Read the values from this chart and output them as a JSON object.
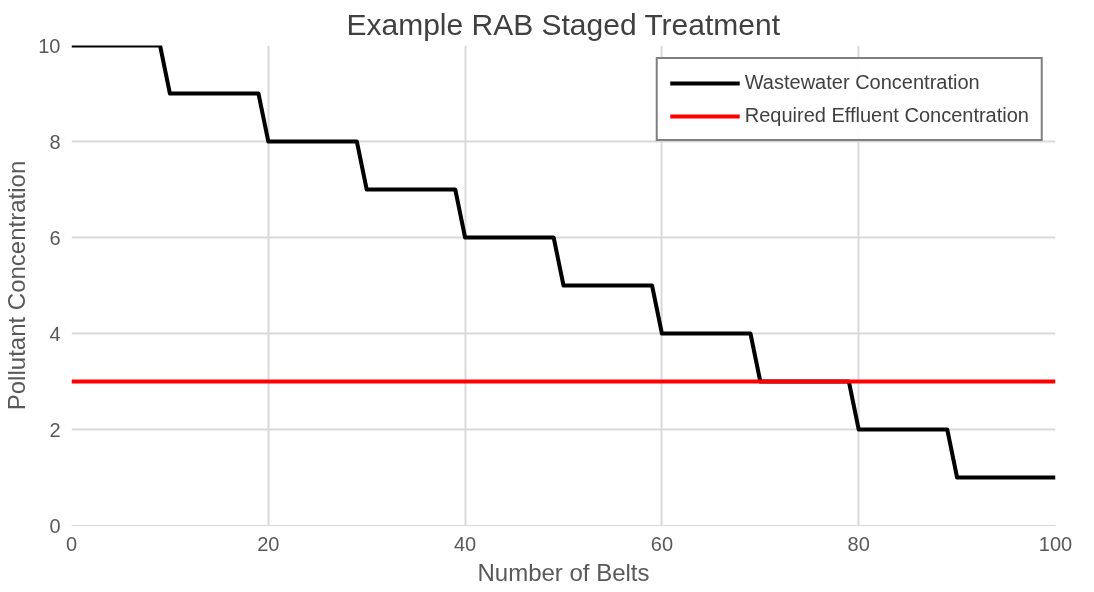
{
  "chart_data": {
    "type": "line",
    "title": "Example RAB Staged Treatment",
    "xlabel": "Number of Belts",
    "ylabel": "Pollutant Concentration",
    "xlim": [
      0,
      100
    ],
    "xticks": [
      0,
      20,
      40,
      60,
      80,
      100
    ],
    "ylim": [
      0,
      10
    ],
    "yticks": [
      0,
      2,
      4,
      6,
      8,
      10
    ],
    "grid": true,
    "legend": "top right",
    "series": [
      {
        "name": "Wastewater Concentration",
        "color": "#000000",
        "x": [
          0,
          9,
          10,
          19,
          20,
          29,
          30,
          39,
          40,
          49,
          50,
          59,
          60,
          69,
          70,
          79,
          80,
          89,
          90,
          100
        ],
        "values": [
          10,
          10,
          9,
          9,
          8,
          8,
          7,
          7,
          6,
          6,
          5,
          5,
          4,
          4,
          3,
          3,
          2,
          2,
          1,
          1
        ]
      },
      {
        "name": "Required Effluent Concentration",
        "color": "#ff0000",
        "x": [
          0,
          100
        ],
        "values": [
          3,
          3
        ]
      }
    ]
  }
}
